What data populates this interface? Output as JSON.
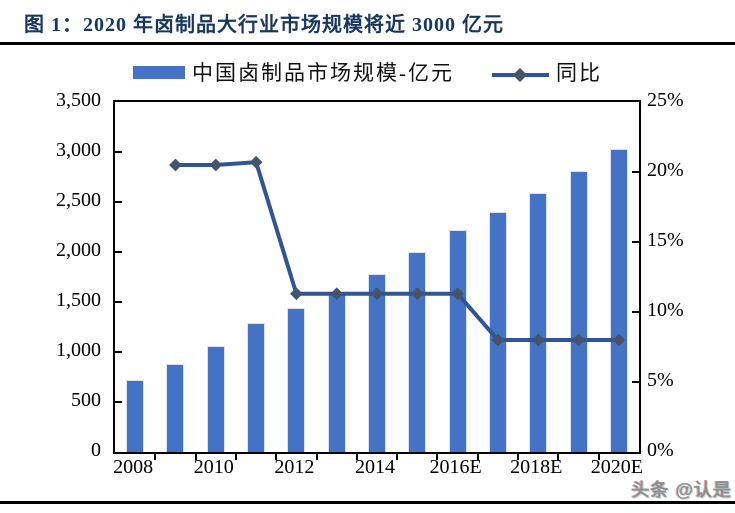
{
  "figure": {
    "title": "图 1：2020 年卤制品大行业市场规模将近 3000 亿元",
    "watermark": "头条 @认是"
  },
  "legend": [
    {
      "type": "bar",
      "label": "中国卤制品市场规模-亿元"
    },
    {
      "type": "line",
      "label": "同比"
    }
  ],
  "colors": {
    "bar": "#4472C4",
    "line": "#2F5597",
    "marker": "#44546A",
    "title": "#17375E",
    "axis": "#000000",
    "watermark": "#8F8F8F"
  },
  "chart_data": {
    "type": "combo",
    "categories": [
      "2008",
      "2009",
      "2010",
      "2011",
      "2012",
      "2013",
      "2014",
      "2015",
      "2016E",
      "2017E",
      "2018E",
      "2019E",
      "2020E"
    ],
    "series": [
      {
        "name": "中国卤制品市场规模-亿元",
        "chart_type": "bar",
        "axis": "left",
        "values": [
          720,
          880,
          1060,
          1290,
          1440,
          1590,
          1780,
          2000,
          2220,
          2400,
          2590,
          2810,
          3030
        ]
      },
      {
        "name": "同比",
        "chart_type": "line",
        "axis": "right",
        "values": [
          null,
          20.5,
          20.5,
          20.7,
          11.3,
          11.3,
          11.3,
          11.3,
          11.3,
          8.0,
          8.0,
          8.0,
          8.0
        ]
      }
    ],
    "left_axis": {
      "min": 0,
      "max": 3500,
      "step": 500,
      "tick_labels": [
        "3,500",
        "3,000",
        "2,500",
        "2,000",
        "1,500",
        "1,000",
        "500",
        "0"
      ]
    },
    "right_axis": {
      "min": 0,
      "max": 25,
      "step": 5,
      "tick_labels": [
        "25%",
        "20%",
        "15%",
        "10%",
        "5%",
        "0%"
      ]
    },
    "x_tick_labels": [
      "2008",
      "2010",
      "2012",
      "2014",
      "2016E",
      "2018E",
      "2020E"
    ],
    "grid": false,
    "legend_position": "top"
  }
}
